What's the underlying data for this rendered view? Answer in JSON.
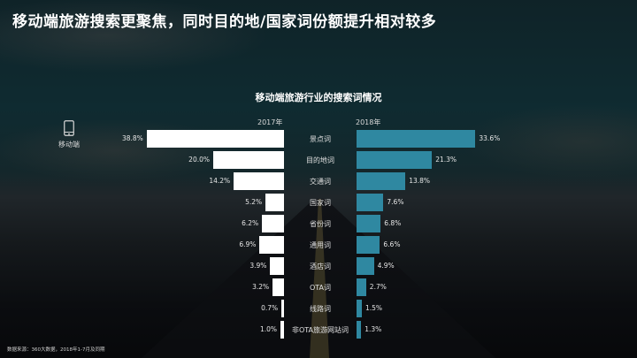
{
  "page": {
    "title": "移动端旅游搜索更聚焦，同时目的地/国家词份额提升相对较多",
    "source": "数据来源：360大数据，2018年1-7月及同期"
  },
  "device": {
    "icon": "mobile-phone-icon",
    "label": "移动端"
  },
  "colors": {
    "bar_2017": "#ffffff",
    "bar_2018": "#2f88a1",
    "background": "#0f2328"
  },
  "chart_data": {
    "type": "bar",
    "orientation": "horizontal-butterfly",
    "title": "移动端旅游行业的搜索词情况",
    "categories": [
      "景点词",
      "目的地词",
      "交通词",
      "国家词",
      "省份词",
      "通用词",
      "酒店词",
      "OTA词",
      "线路词",
      "非OTA旅游网站词"
    ],
    "series": [
      {
        "name": "2017年",
        "values": [
          38.8,
          20.0,
          14.2,
          5.2,
          6.2,
          6.9,
          3.9,
          3.2,
          0.7,
          1.0
        ],
        "labels": [
          "38.8%",
          "20.0%",
          "14.2%",
          "5.2%",
          "6.2%",
          "6.9%",
          "3.9%",
          "3.2%",
          "0.7%",
          "1.0%"
        ]
      },
      {
        "name": "2018年",
        "values": [
          33.6,
          21.3,
          13.8,
          7.6,
          6.8,
          6.6,
          4.9,
          2.7,
          1.5,
          1.3
        ],
        "labels": [
          "33.6%",
          "21.3%",
          "13.8%",
          "7.6%",
          "6.8%",
          "6.6%",
          "4.9%",
          "2.7%",
          "1.5%",
          "1.3%"
        ]
      }
    ],
    "unit": "%",
    "xlabel": "",
    "ylabel": "",
    "grid": false,
    "legend": "year labels above bars (2017年 left, 2018年 right)"
  }
}
